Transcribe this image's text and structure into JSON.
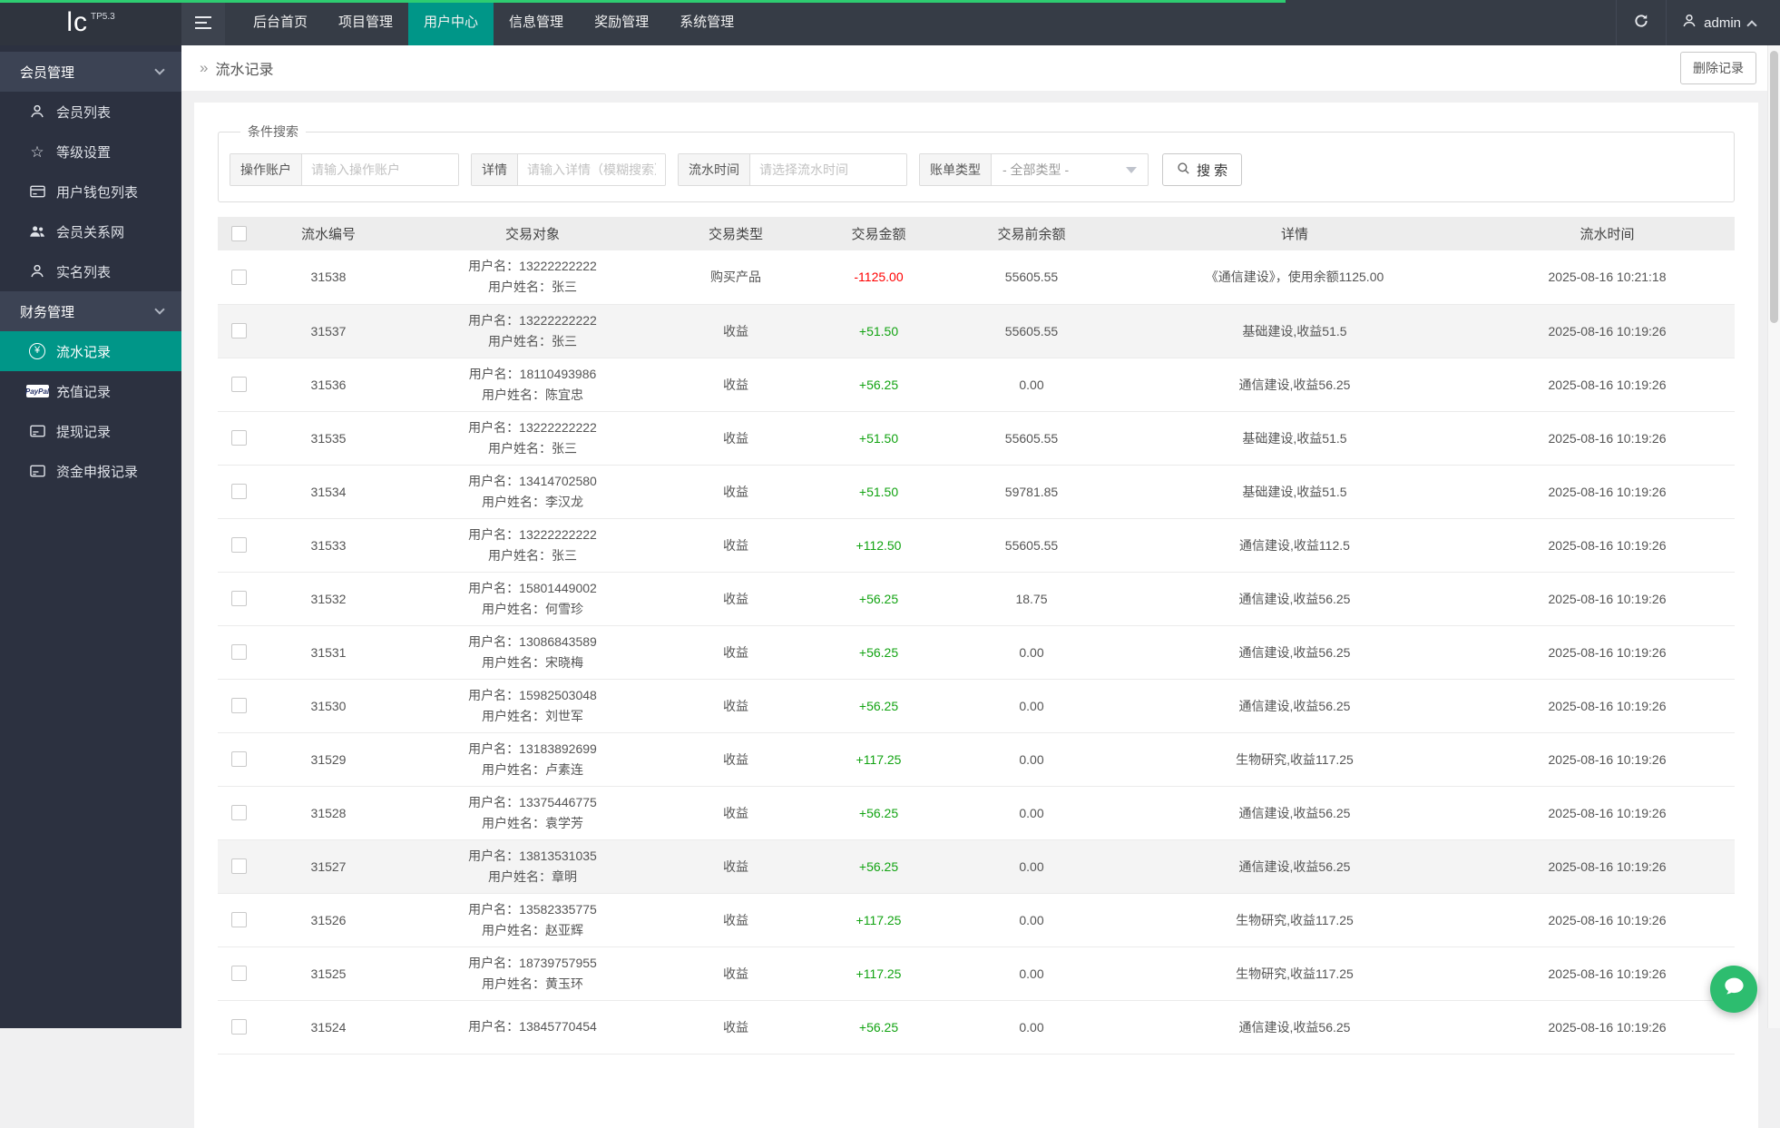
{
  "topbar": {
    "logo": "lc",
    "logo_badge": "TP5.3",
    "menus": [
      {
        "label": "后台首页",
        "active": false
      },
      {
        "label": "项目管理",
        "active": false
      },
      {
        "label": "用户中心",
        "active": true
      },
      {
        "label": "信息管理",
        "active": false
      },
      {
        "label": "奖励管理",
        "active": false
      },
      {
        "label": "系统管理",
        "active": false
      }
    ],
    "username": "admin"
  },
  "sidebar": {
    "groups": [
      {
        "label": "会员管理",
        "items": [
          {
            "icon": "user-icon",
            "label": "会员列表",
            "active": false
          },
          {
            "icon": "star-icon",
            "label": "等级设置",
            "active": false
          },
          {
            "icon": "wallet-icon",
            "label": "用户钱包列表",
            "active": false
          },
          {
            "icon": "users-icon",
            "label": "会员关系网",
            "active": false
          },
          {
            "icon": "user-icon",
            "label": "实名列表",
            "active": false
          }
        ]
      },
      {
        "label": "财务管理",
        "items": [
          {
            "icon": "yen-circle-icon",
            "label": "流水记录",
            "active": true
          },
          {
            "icon": "paypal-icon",
            "label": "充值记录",
            "active": false
          },
          {
            "icon": "card-icon",
            "label": "提现记录",
            "active": false
          },
          {
            "icon": "card-icon",
            "label": "资金申报记录",
            "active": false
          }
        ]
      }
    ]
  },
  "breadcrumb": {
    "arrow": "»",
    "title": "流水记录",
    "delete_button": "删除记录"
  },
  "search": {
    "legend": "条件搜索",
    "fields": [
      {
        "label": "操作账户",
        "placeholder": "请输入操作账户"
      },
      {
        "label": "详情",
        "placeholder": "请输入详情（模糊搜索）"
      },
      {
        "label": "流水时间",
        "placeholder": "请选择流水时间"
      }
    ],
    "select": {
      "label": "账单类型",
      "value": "- 全部类型 -"
    },
    "search_button": "搜 索"
  },
  "table": {
    "headers": [
      "流水编号",
      "交易对象",
      "交易类型",
      "交易金额",
      "交易前余额",
      "详情",
      "流水时间"
    ],
    "label_username": "用户名：",
    "label_realname": "用户姓名：",
    "rows": [
      {
        "id": "31538",
        "username": "13222222222",
        "realname": "张三",
        "type": "购买产品",
        "amount": "-1125.00",
        "balance": "55605.55",
        "detail": "《通信建设》，使用余额1125.00",
        "time": "2025-08-16 10:21:18",
        "shaded": false
      },
      {
        "id": "31537",
        "username": "13222222222",
        "realname": "张三",
        "type": "收益",
        "amount": "+51.50",
        "balance": "55605.55",
        "detail": "基础建设,收益51.5",
        "time": "2025-08-16 10:19:26",
        "shaded": true
      },
      {
        "id": "31536",
        "username": "18110493986",
        "realname": "陈宜忠",
        "type": "收益",
        "amount": "+56.25",
        "balance": "0.00",
        "detail": "通信建设,收益56.25",
        "time": "2025-08-16 10:19:26",
        "shaded": false
      },
      {
        "id": "31535",
        "username": "13222222222",
        "realname": "张三",
        "type": "收益",
        "amount": "+51.50",
        "balance": "55605.55",
        "detail": "基础建设,收益51.5",
        "time": "2025-08-16 10:19:26",
        "shaded": false
      },
      {
        "id": "31534",
        "username": "13414702580",
        "realname": "李汉龙",
        "type": "收益",
        "amount": "+51.50",
        "balance": "59781.85",
        "detail": "基础建设,收益51.5",
        "time": "2025-08-16 10:19:26",
        "shaded": false
      },
      {
        "id": "31533",
        "username": "13222222222",
        "realname": "张三",
        "type": "收益",
        "amount": "+112.50",
        "balance": "55605.55",
        "detail": "通信建设,收益112.5",
        "time": "2025-08-16 10:19:26",
        "shaded": false
      },
      {
        "id": "31532",
        "username": "15801449002",
        "realname": "何雪珍",
        "type": "收益",
        "amount": "+56.25",
        "balance": "18.75",
        "detail": "通信建设,收益56.25",
        "time": "2025-08-16 10:19:26",
        "shaded": false
      },
      {
        "id": "31531",
        "username": "13086843589",
        "realname": "宋晓梅",
        "type": "收益",
        "amount": "+56.25",
        "balance": "0.00",
        "detail": "通信建设,收益56.25",
        "time": "2025-08-16 10:19:26",
        "shaded": false
      },
      {
        "id": "31530",
        "username": "15982503048",
        "realname": "刘世军",
        "type": "收益",
        "amount": "+56.25",
        "balance": "0.00",
        "detail": "通信建设,收益56.25",
        "time": "2025-08-16 10:19:26",
        "shaded": false
      },
      {
        "id": "31529",
        "username": "13183892699",
        "realname": "卢素连",
        "type": "收益",
        "amount": "+117.25",
        "balance": "0.00",
        "detail": "生物研究,收益117.25",
        "time": "2025-08-16 10:19:26",
        "shaded": false
      },
      {
        "id": "31528",
        "username": "13375446775",
        "realname": "袁学芳",
        "type": "收益",
        "amount": "+56.25",
        "balance": "0.00",
        "detail": "通信建设,收益56.25",
        "time": "2025-08-16 10:19:26",
        "shaded": false
      },
      {
        "id": "31527",
        "username": "13813531035",
        "realname": "章明",
        "type": "收益",
        "amount": "+56.25",
        "balance": "0.00",
        "detail": "通信建设,收益56.25",
        "time": "2025-08-16 10:19:26",
        "shaded": true
      },
      {
        "id": "31526",
        "username": "13582335775",
        "realname": "赵亚辉",
        "type": "收益",
        "amount": "+117.25",
        "balance": "0.00",
        "detail": "生物研究,收益117.25",
        "time": "2025-08-16 10:19:26",
        "shaded": false
      },
      {
        "id": "31525",
        "username": "18739757955",
        "realname": "黄玉环",
        "type": "收益",
        "amount": "+117.25",
        "balance": "0.00",
        "detail": "生物研究,收益117.25",
        "time": "2025-08-16 10:19:26",
        "shaded": false
      },
      {
        "id": "31524",
        "username": "13845770454",
        "realname": "",
        "type": "收益",
        "amount": "+56.25",
        "balance": "0.00",
        "detail": "通信建设,收益56.25",
        "time": "2025-08-16 10:19:26",
        "shaded": false
      }
    ]
  },
  "colors": {
    "accent": "#009688",
    "positive": "#12a312",
    "negative": "#ff0000",
    "progress": "#2ecc71",
    "floatbtn": "#2dbd6f"
  }
}
